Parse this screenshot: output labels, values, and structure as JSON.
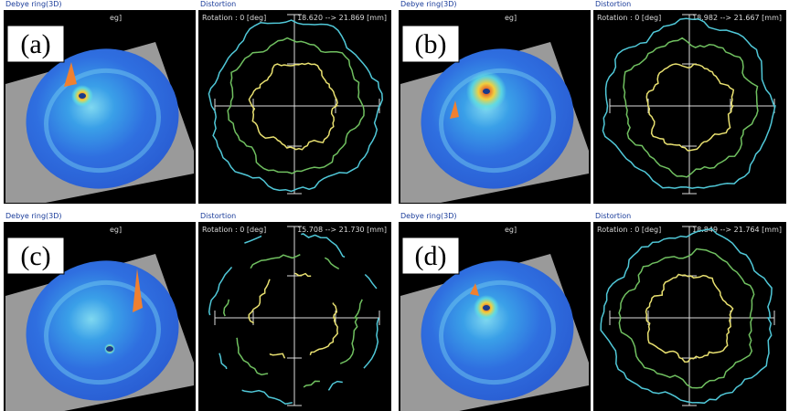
{
  "panels": [
    {
      "label": "(a)",
      "debye": {
        "title": "Debye ring(3D)",
        "rotation": "eg]"
      },
      "distortion": {
        "title": "Distortion",
        "rotation": "Rotation : 0 [deg]",
        "range": "18.620 --> 21.869 [mm]"
      }
    },
    {
      "label": "(b)",
      "debye": {
        "title": "Debye ring(3D)",
        "rotation": "eg]"
      },
      "distortion": {
        "title": "Distortion",
        "rotation": "Rotation : 0 [deg]",
        "range": "18.982 --> 21.667 [mm]"
      }
    },
    {
      "label": "(c)",
      "debye": {
        "title": "Debye ring(3D)",
        "rotation": "eg]"
      },
      "distortion": {
        "title": "Distortion",
        "rotation": "Rotation : 0 [deg]",
        "range": "15.708 --> 21.730 [mm]"
      }
    },
    {
      "label": "(d)",
      "debye": {
        "title": "Debye ring(3D)",
        "rotation": "eg]"
      },
      "distortion": {
        "title": "Distortion",
        "rotation": "Rotation : 0 [deg]",
        "range": "18.849 --> 21.764 [mm]"
      }
    }
  ]
}
